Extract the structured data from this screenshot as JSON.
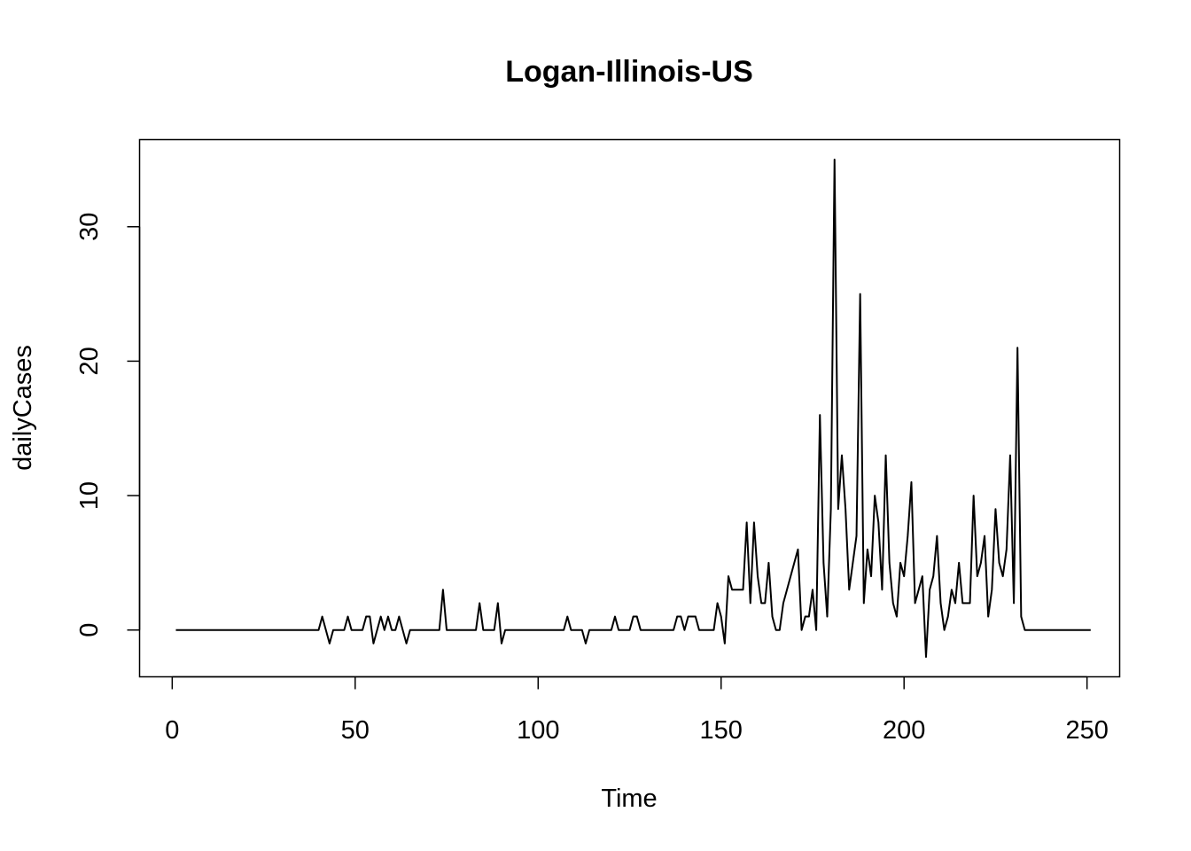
{
  "chart_data": {
    "type": "line",
    "title": "Logan-Illinois-US",
    "xlabel": "Time",
    "ylabel": "dailyCases",
    "xlim": [
      -8.92,
      258.92
    ],
    "ylim": [
      -3.48,
      36.48
    ],
    "x_ticks": [
      0,
      50,
      100,
      150,
      200,
      250
    ],
    "y_ticks": [
      0,
      10,
      20,
      30
    ],
    "grid": false,
    "legend": "none",
    "line_color": "#000000",
    "series": [
      {
        "x_start": 1,
        "values": [
          0,
          0,
          0,
          0,
          0,
          0,
          0,
          0,
          0,
          0,
          0,
          0,
          0,
          0,
          0,
          0,
          0,
          0,
          0,
          0,
          0,
          0,
          0,
          0,
          0,
          0,
          0,
          0,
          0,
          0,
          0,
          0,
          0,
          0,
          0,
          0,
          0,
          0,
          0,
          0,
          1,
          0,
          -1,
          0,
          0,
          0,
          0,
          1,
          0,
          0,
          0,
          0,
          1,
          1,
          -1,
          0,
          1,
          0,
          1,
          0,
          0,
          1,
          0,
          -1,
          0,
          0,
          0,
          0,
          0,
          0,
          0,
          0,
          0,
          3,
          0,
          0,
          0,
          0,
          0,
          0,
          0,
          0,
          0,
          2,
          0,
          0,
          0,
          0,
          2,
          -1,
          0,
          0,
          0,
          0,
          0,
          0,
          0,
          0,
          0,
          0,
          0,
          0,
          0,
          0,
          0,
          0,
          0,
          1,
          0,
          0,
          0,
          0,
          -1,
          0,
          0,
          0,
          0,
          0,
          0,
          0,
          1,
          0,
          0,
          0,
          0,
          1,
          1,
          0,
          0,
          0,
          0,
          0,
          0,
          0,
          0,
          0,
          0,
          1,
          1,
          0,
          1,
          1,
          1,
          0,
          0,
          0,
          0,
          0,
          2,
          1,
          -1,
          4,
          3,
          3,
          3,
          3,
          8,
          2,
          8,
          4,
          2,
          2,
          5,
          1,
          0,
          0,
          2,
          3,
          4,
          5,
          6,
          0,
          1,
          1,
          3,
          0,
          16,
          5,
          1,
          9,
          35,
          9,
          13,
          9,
          3,
          5,
          7,
          25,
          2,
          6,
          4,
          10,
          8,
          3,
          13,
          5,
          2,
          1,
          5,
          4,
          7,
          11,
          2,
          3,
          4,
          -2,
          3,
          4,
          7,
          2,
          0,
          1,
          3,
          2,
          5,
          2,
          2,
          2,
          10,
          4,
          5,
          7,
          1,
          3,
          9,
          5,
          4,
          6,
          13,
          2,
          21,
          1,
          0,
          0,
          0,
          0,
          0,
          0,
          0,
          0,
          0,
          0,
          0,
          0,
          0,
          0,
          0,
          0,
          0,
          0,
          0
        ]
      }
    ]
  }
}
